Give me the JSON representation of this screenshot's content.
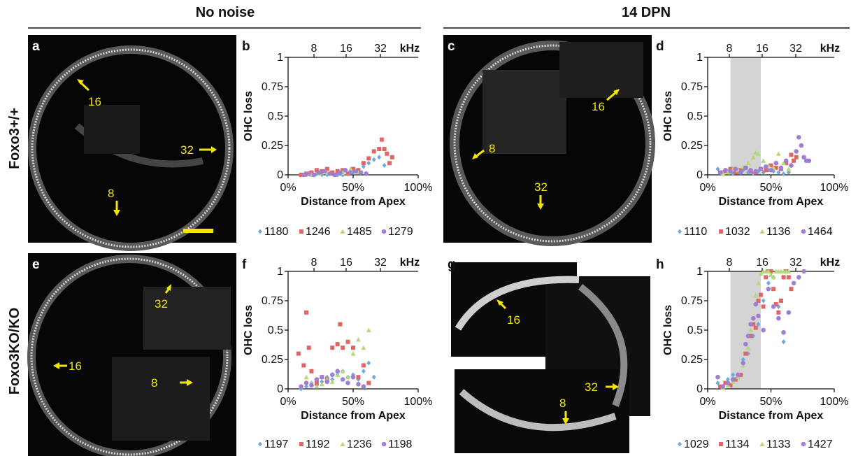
{
  "headers": {
    "left": "No noise",
    "right": "14 DPN"
  },
  "rows": [
    "Foxo3+/+",
    "Foxo3KO/KO"
  ],
  "colors": {
    "s1": "#6fa8dc",
    "s2": "#e06666",
    "s3": "#b6d77a",
    "s4": "#9f7fd6",
    "annotation": "#f2e600",
    "shade": "#d4d4d4"
  },
  "images": [
    {
      "label": "a",
      "markers": [
        "16",
        "32",
        "8"
      ]
    },
    {
      "label": "c",
      "markers": [
        "16",
        "8",
        "32"
      ]
    },
    {
      "label": "e",
      "markers": [
        "32",
        "16",
        "8"
      ]
    },
    {
      "label": "g",
      "markers": [
        "16",
        "32",
        "8"
      ]
    }
  ],
  "chart_data": [
    {
      "label": "b",
      "type": "scatter",
      "xlabel": "Distance from Apex",
      "ylabel": "OHC loss",
      "xlim": [
        0,
        100
      ],
      "ylim": [
        0,
        1
      ],
      "xticks": [
        "0%",
        "50%",
        "100%"
      ],
      "yticks": [
        "0",
        "0.25",
        "0.5",
        "0.75",
        "1"
      ],
      "top_axis": {
        "ticks": [
          "8",
          "16",
          "32"
        ],
        "unit": "kHz"
      },
      "series": [
        {
          "name": "1180",
          "x": [
            10,
            14,
            18,
            22,
            26,
            30,
            34,
            38,
            42,
            46,
            50,
            54,
            58,
            62,
            66,
            70,
            74
          ],
          "y": [
            0,
            0,
            0,
            0.01,
            0,
            0,
            0.02,
            0,
            0,
            0.01,
            0.02,
            0.04,
            0.07,
            0.1,
            0.13,
            0.15,
            0.08
          ]
        },
        {
          "name": "1246",
          "x": [
            10,
            14,
            18,
            22,
            26,
            30,
            34,
            38,
            42,
            46,
            50,
            54,
            58,
            62,
            66,
            70,
            72,
            74,
            76,
            78,
            80
          ],
          "y": [
            0,
            0.01,
            0.02,
            0.04,
            0.03,
            0.05,
            0.02,
            0.03,
            0.04,
            0.01,
            0.05,
            0.04,
            0.1,
            0.14,
            0.2,
            0.22,
            0.3,
            0.22,
            0.18,
            0.1,
            0.15
          ]
        },
        {
          "name": "1485",
          "x": [
            12,
            18,
            24,
            30,
            36,
            42,
            48,
            54,
            60
          ],
          "y": [
            0,
            0,
            0.01,
            0.02,
            0,
            0.02,
            0.05,
            0.02,
            0.01
          ]
        },
        {
          "name": "1279",
          "x": [
            12,
            16,
            20,
            24,
            28,
            32,
            36,
            40,
            44,
            48,
            52,
            56,
            60
          ],
          "y": [
            0,
            0.01,
            0,
            0.02,
            0.03,
            0.01,
            0,
            0.02,
            0.04,
            0.02,
            0.03,
            0.02,
            0.01
          ]
        }
      ],
      "legend": [
        "1180",
        "1246",
        "1485",
        "1279"
      ]
    },
    {
      "label": "d",
      "type": "scatter",
      "xlabel": "Distance from Apex",
      "ylabel": "OHC loss",
      "xlim": [
        0,
        100
      ],
      "ylim": [
        0,
        1
      ],
      "xticks": [
        "0%",
        "50%",
        "100%"
      ],
      "yticks": [
        "0",
        "0.25",
        "0.5",
        "0.75",
        "1"
      ],
      "top_axis": {
        "ticks": [
          "8",
          "16",
          "32"
        ],
        "unit": "kHz"
      },
      "shaded_range": [
        18,
        42
      ],
      "series": [
        {
          "name": "1110",
          "x": [
            8,
            12,
            16,
            20,
            24,
            28,
            32,
            36,
            40,
            44,
            48,
            52,
            56,
            60,
            64
          ],
          "y": [
            0.05,
            0.02,
            0.03,
            0.01,
            0.02,
            0.04,
            0.02,
            0.01,
            0.03,
            0.02,
            0.04,
            0.03,
            0.02,
            0.01,
            0.02
          ]
        },
        {
          "name": "1032",
          "x": [
            10,
            14,
            18,
            22,
            26,
            30,
            34,
            38,
            42,
            46,
            50,
            54,
            58,
            62,
            66,
            68,
            70
          ],
          "y": [
            0.02,
            0.03,
            0.05,
            0.02,
            0.04,
            0.06,
            0.03,
            0.02,
            0.05,
            0.04,
            0.08,
            0.06,
            0.05,
            0.1,
            0.17,
            0.12,
            0.15
          ]
        },
        {
          "name": "1136",
          "x": [
            12,
            16,
            20,
            24,
            28,
            32,
            36,
            38,
            40,
            44,
            48,
            52,
            56,
            60,
            64
          ],
          "y": [
            0.01,
            0.02,
            0.05,
            0.04,
            0.07,
            0.1,
            0.15,
            0.19,
            0.18,
            0.12,
            0.08,
            0.06,
            0.18,
            0.1,
            0.05
          ]
        },
        {
          "name": "1464",
          "x": [
            10,
            14,
            18,
            22,
            26,
            30,
            34,
            38,
            42,
            46,
            50,
            54,
            58,
            62,
            66,
            70,
            72,
            74,
            76,
            78,
            80
          ],
          "y": [
            0.02,
            0.04,
            0.03,
            0.05,
            0.02,
            0.06,
            0.04,
            0.03,
            0.05,
            0.07,
            0.04,
            0.1,
            0.06,
            0.12,
            0.08,
            0.2,
            0.32,
            0.25,
            0.15,
            0.12,
            0.12
          ]
        }
      ],
      "legend": [
        "1110",
        "1032",
        "1136",
        "1464"
      ]
    },
    {
      "label": "f",
      "type": "scatter",
      "xlabel": "Distance from Apex",
      "ylabel": "OHC loss",
      "xlim": [
        0,
        100
      ],
      "ylim": [
        0,
        1
      ],
      "xticks": [
        "0%",
        "50%",
        "100%"
      ],
      "yticks": [
        "0",
        "0.25",
        "0.5",
        "0.75",
        "1"
      ],
      "top_axis": {
        "ticks": [
          "8",
          "16",
          "32"
        ],
        "unit": "kHz"
      },
      "series": [
        {
          "name": "1197",
          "x": [
            10,
            14,
            18,
            22,
            26,
            30,
            34,
            38,
            42,
            46,
            50,
            54,
            58,
            62,
            66
          ],
          "y": [
            0,
            0.02,
            0.05,
            0.03,
            0.06,
            0.1,
            0.08,
            0.12,
            0.15,
            0.1,
            0.12,
            0.08,
            0.15,
            0.22,
            0.1
          ]
        },
        {
          "name": "1192",
          "x": [
            8,
            12,
            14,
            16,
            18,
            22,
            26,
            30,
            34,
            38,
            40,
            42,
            46,
            50,
            54,
            58,
            62
          ],
          "y": [
            0.3,
            0.2,
            0.65,
            0.35,
            0.15,
            0.05,
            0.1,
            0.08,
            0.35,
            0.38,
            0.55,
            0.35,
            0.4,
            0.35,
            0.1,
            0.2,
            0.05
          ]
        },
        {
          "name": "1236",
          "x": [
            14,
            18,
            22,
            26,
            30,
            34,
            38,
            42,
            46,
            50,
            54,
            58,
            62
          ],
          "y": [
            0.1,
            0.05,
            0.02,
            0.04,
            0.08,
            0.06,
            0.12,
            0.15,
            0.1,
            0.3,
            0.42,
            0.35,
            0.5
          ]
        },
        {
          "name": "1198",
          "x": [
            10,
            14,
            18,
            22,
            26,
            30,
            34,
            38,
            42,
            46,
            50,
            54,
            58
          ],
          "y": [
            0.02,
            0.05,
            0.03,
            0.08,
            0.1,
            0.06,
            0.12,
            0.15,
            0.08,
            0.05,
            0.1,
            0.04,
            0.02
          ]
        }
      ],
      "legend": [
        "1197",
        "1192",
        "1236",
        "1198"
      ]
    },
    {
      "label": "h",
      "type": "scatter",
      "xlabel": "Distance from Apex",
      "ylabel": "OHC loss",
      "xlim": [
        0,
        100
      ],
      "ylim": [
        0,
        1
      ],
      "xticks": [
        "0%",
        "50%",
        "100%"
      ],
      "yticks": [
        "0",
        "0.25",
        "0.5",
        "0.75",
        "1"
      ],
      "top_axis": {
        "ticks": [
          "8",
          "16",
          "32"
        ],
        "unit": "kHz"
      },
      "shaded_range": [
        18,
        42
      ],
      "series": [
        {
          "name": "1029",
          "x": [
            8,
            12,
            16,
            20,
            24,
            28,
            32,
            36,
            40,
            44,
            48,
            52,
            56,
            60
          ],
          "y": [
            0.05,
            0.02,
            0.08,
            0.12,
            0.1,
            0.25,
            0.3,
            0.45,
            0.55,
            0.75,
            0.9,
            0.95,
            0.7,
            0.4
          ]
        },
        {
          "name": "1134",
          "x": [
            10,
            14,
            18,
            22,
            26,
            30,
            34,
            36,
            38,
            40,
            42,
            44,
            46,
            48,
            50,
            52,
            54,
            56,
            58,
            60,
            62,
            64,
            66
          ],
          "y": [
            0.02,
            0.05,
            0.03,
            0.08,
            0.12,
            0.3,
            0.45,
            0.55,
            0.52,
            0.75,
            0.8,
            0.7,
            0.95,
            1.0,
            1.0,
            0.85,
            0.72,
            0.65,
            0.75,
            0.95,
            1.0,
            0.95,
            0.85
          ]
        },
        {
          "name": "1133",
          "x": [
            12,
            16,
            20,
            24,
            28,
            32,
            34,
            36,
            38,
            40,
            42,
            44,
            46,
            48,
            50,
            52,
            54,
            56,
            58,
            60,
            62,
            64
          ],
          "y": [
            0.01,
            0.03,
            0.06,
            0.1,
            0.2,
            0.35,
            0.5,
            0.6,
            0.8,
            0.9,
            0.98,
            1.0,
            1.0,
            1.0,
            0.97,
            0.95,
            1.0,
            1.0,
            1.0,
            1.0,
            1.0,
            1.0
          ]
        },
        {
          "name": "1427",
          "x": [
            8,
            12,
            16,
            20,
            24,
            28,
            30,
            32,
            34,
            36,
            38,
            40,
            44,
            48,
            52,
            56,
            60,
            64,
            68,
            72,
            76
          ],
          "y": [
            0.1,
            0.02,
            0.05,
            0.08,
            0.12,
            0.22,
            0.38,
            0.45,
            0.55,
            0.6,
            0.72,
            0.62,
            0.5,
            0.85,
            0.7,
            0.6,
            0.48,
            0.65,
            0.9,
            0.95,
            1.0
          ]
        }
      ],
      "legend": [
        "1029",
        "1134",
        "1133",
        "1427"
      ]
    }
  ]
}
